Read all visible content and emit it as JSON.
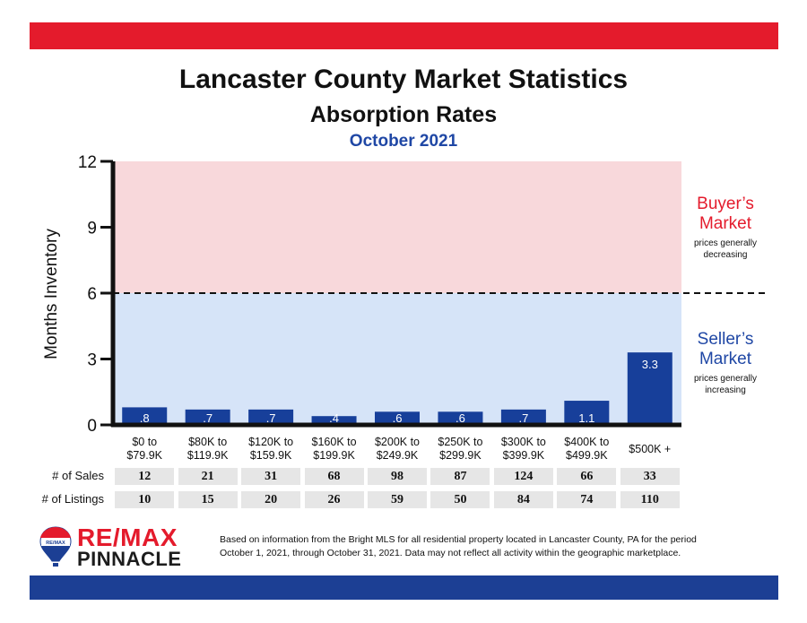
{
  "colors": {
    "top_band": "#e41b2c",
    "bottom_band": "#1c3f94",
    "buyer_zone": "#f8d8db",
    "seller_zone": "#d6e4f8",
    "bar": "#173f9a",
    "buyer_text": "#e41b2c",
    "seller_text": "#1f47a5"
  },
  "header": {
    "title": "Lancaster County Market Statistics",
    "subtitle": "Absorption Rates",
    "period": "October 2021"
  },
  "zones": {
    "buyer_line1": "Buyer’s",
    "buyer_line2": "Market",
    "buyer_sub1": "prices generally",
    "buyer_sub2": "decreasing",
    "seller_line1": "Seller’s",
    "seller_line2": "Market",
    "seller_sub1": "prices generally",
    "seller_sub2": "increasing"
  },
  "chart_data": {
    "type": "bar",
    "ylabel": "Months Inventory",
    "ylim": [
      0,
      12
    ],
    "yticks": [
      0,
      3,
      6,
      9,
      12
    ],
    "threshold": 6,
    "categories": [
      [
        "$0 to",
        "$79.9K"
      ],
      [
        "$80K to",
        "$119.9K"
      ],
      [
        "$120K to",
        "$159.9K"
      ],
      [
        "$160K to",
        "$199.9K"
      ],
      [
        "$200K to",
        "$249.9K"
      ],
      [
        "$250K to",
        "$299.9K"
      ],
      [
        "$300K to",
        "$399.9K"
      ],
      [
        "$400K to",
        "$499.9K"
      ],
      [
        "$500K +"
      ]
    ],
    "values": [
      0.8,
      0.7,
      0.7,
      0.4,
      0.6,
      0.6,
      0.7,
      1.1,
      3.3
    ],
    "value_labels": [
      ".8",
      ".7",
      ".7",
      ".4",
      ".6",
      ".6",
      ".7",
      "1.1",
      "3.3"
    ]
  },
  "table": {
    "rows": [
      {
        "label": "# of Sales",
        "values": [
          "12",
          "21",
          "31",
          "68",
          "98",
          "87",
          "124",
          "66",
          "33"
        ]
      },
      {
        "label": "# of Listings",
        "values": [
          "10",
          "15",
          "20",
          "26",
          "59",
          "50",
          "84",
          "74",
          "110"
        ]
      }
    ]
  },
  "logo": {
    "line1": "RE/MAX",
    "line2": "PINNACLE",
    "balloon_text": "RE/MAX"
  },
  "footnote": {
    "line1": "Based on information from the Bright MLS for all residential property located in Lancaster County, PA for the period",
    "line2": "October 1, 2021, through October 31, 2021.  Data may not reflect all activity within the geographic marketplace."
  }
}
